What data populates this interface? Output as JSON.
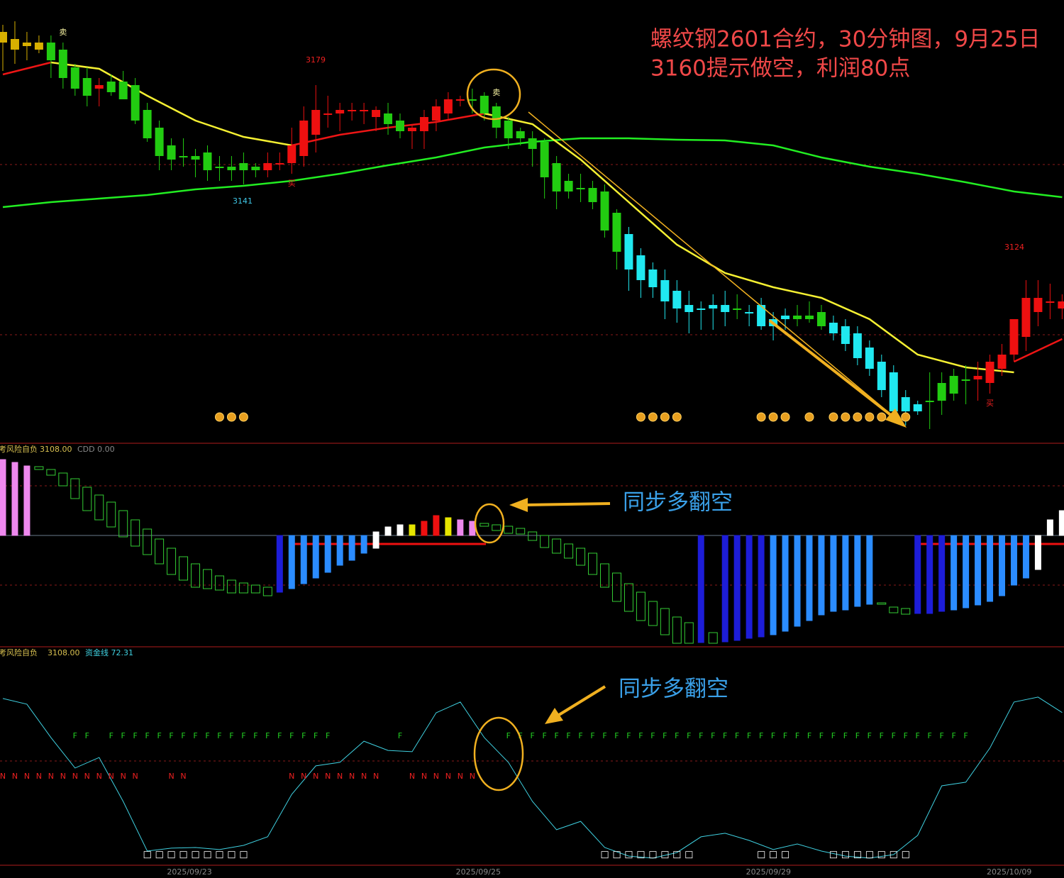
{
  "chart_data": [
    {
      "type": "candlestick",
      "title": [
        "螺纹钢2601合约，30分钟图，9月25日",
        "3160提示做空，利润80点"
      ],
      "ylim": [
        3078,
        3203
      ],
      "open": [
        3194,
        3192,
        3191,
        3191,
        3191,
        3189,
        3184,
        3181,
        3178,
        3180,
        3180,
        3179,
        3172,
        3167,
        3162,
        3159,
        3159,
        3160,
        3156,
        3156,
        3157,
        3156,
        3155,
        3157,
        3157,
        3159,
        3165,
        3171,
        3171,
        3172,
        3172,
        3170,
        3171,
        3169,
        3166,
        3166,
        3169,
        3171,
        3175,
        3175,
        3176,
        3173,
        3169,
        3166,
        3164,
        3163,
        3157,
        3152,
        3150,
        3150,
        3149,
        3143,
        3137,
        3131,
        3127,
        3124,
        3121,
        3117,
        3116,
        3117,
        3117,
        3116,
        3115,
        3117,
        3113,
        3114,
        3114,
        3114,
        3115,
        3112,
        3111,
        3109,
        3105,
        3101,
        3098,
        3091,
        3089,
        3090,
        3095,
        3097,
        3096,
        3096,
        3095,
        3099,
        3103,
        3108,
        3115,
        3118,
        3118
      ],
      "high": [
        3196,
        3197,
        3194,
        3193,
        3193,
        3191,
        3185,
        3184,
        3181,
        3182,
        3183,
        3181,
        3174,
        3169,
        3164,
        3164,
        3161,
        3162,
        3159,
        3159,
        3160,
        3157,
        3160,
        3160,
        3167,
        3173,
        3179,
        3176,
        3174,
        3174,
        3174,
        3173,
        3174,
        3171,
        3168,
        3172,
        3175,
        3177,
        3176,
        3178,
        3177,
        3174,
        3170,
        3167,
        3166,
        3164,
        3159,
        3154,
        3154,
        3152,
        3151,
        3144,
        3139,
        3133,
        3129,
        3127,
        3124,
        3121,
        3118,
        3120,
        3121,
        3120,
        3117,
        3119,
        3115,
        3116,
        3117,
        3118,
        3117,
        3114,
        3113,
        3111,
        3107,
        3103,
        3100,
        3093,
        3090,
        3098,
        3098,
        3099,
        3100,
        3101,
        3103,
        3106,
        3113,
        3124,
        3124,
        3123,
        3120
      ],
      "low": [
        3183,
        3185,
        3186,
        3188,
        3181,
        3178,
        3176,
        3173,
        3173,
        3176,
        3175,
        3168,
        3163,
        3155,
        3155,
        3156,
        3153,
        3152,
        3152,
        3152,
        3151,
        3153,
        3153,
        3155,
        3154,
        3156,
        3160,
        3167,
        3166,
        3169,
        3168,
        3166,
        3165,
        3164,
        3161,
        3161,
        3166,
        3169,
        3173,
        3171,
        3169,
        3164,
        3161,
        3162,
        3156,
        3147,
        3144,
        3147,
        3146,
        3144,
        3136,
        3127,
        3121,
        3119,
        3119,
        3113,
        3112,
        3109,
        3110,
        3110,
        3111,
        3113,
        3111,
        3110,
        3107,
        3110,
        3111,
        3112,
        3110,
        3107,
        3104,
        3100,
        3097,
        3091,
        3085,
        3083,
        3086,
        3082,
        3086,
        3090,
        3089,
        3090,
        3092,
        3097,
        3101,
        3104,
        3111,
        3113,
        3113
      ],
      "close": [
        3191,
        3189,
        3190,
        3189,
        3186,
        3181,
        3178,
        3176,
        3179,
        3177,
        3175,
        3169,
        3164,
        3159,
        3158,
        3159,
        3158,
        3155,
        3156,
        3155,
        3155,
        3155,
        3157,
        3157,
        3162,
        3169,
        3172,
        3171,
        3172,
        3172,
        3172,
        3172,
        3168,
        3166,
        3167,
        3170,
        3173,
        3175,
        3175,
        3175,
        3171,
        3167,
        3164,
        3164,
        3161,
        3153,
        3149,
        3149,
        3150,
        3146,
        3138,
        3132,
        3127,
        3124,
        3122,
        3118,
        3116,
        3115,
        3116,
        3116,
        3115,
        3116,
        3115,
        3111,
        3111,
        3113,
        3113,
        3113,
        3111,
        3109,
        3106,
        3102,
        3099,
        3093,
        3087,
        3087,
        3087,
        3090,
        3090,
        3092,
        3096,
        3097,
        3101,
        3103,
        3113,
        3119,
        3119,
        3118,
        3116
      ],
      "colors": [
        "#d8b000",
        "#d8b000",
        "#d8b000",
        "#d8b000",
        "#22cc11",
        "#22cc11",
        "#22cc11",
        "#22cc11",
        "#ee1010",
        "#22cc11",
        "#22cc11",
        "#22cc11",
        "#22cc11",
        "#22cc11",
        "#22cc11",
        "#22cc11",
        "#22cc11",
        "#22cc11",
        "#22cc11",
        "#22cc11",
        "#22cc11",
        "#22cc11",
        "#ee1010",
        "#ee1010",
        "#ee1010",
        "#ee1010",
        "#ee1010",
        "#ee1010",
        "#ee1010",
        "#ee1010",
        "#ee1010",
        "#ee1010",
        "#22cc11",
        "#22cc11",
        "#ee1010",
        "#ee1010",
        "#ee1010",
        "#ee1010",
        "#ee1010",
        "#22cc11",
        "#22cc11",
        "#22cc11",
        "#22cc11",
        "#22cc11",
        "#22cc11",
        "#22cc11",
        "#22cc11",
        "#22cc11",
        "#22cc11",
        "#22cc11",
        "#22cc11",
        "#22cc11",
        "#20e8f0",
        "#20e8f0",
        "#20e8f0",
        "#20e8f0",
        "#20e8f0",
        "#20e8f0",
        "#20e8f0",
        "#20e8f0",
        "#20e8f0",
        "#22cc11",
        "#20e8f0",
        "#20e8f0",
        "#20e8f0",
        "#20e8f0",
        "#22cc11",
        "#22cc11",
        "#22cc11",
        "#20e8f0",
        "#20e8f0",
        "#20e8f0",
        "#20e8f0",
        "#20e8f0",
        "#20e8f0",
        "#20e8f0",
        "#20e8f0",
        "#22cc11",
        "#22cc11",
        "#22cc11",
        "#22cc11",
        "#ee1010",
        "#ee1010",
        "#ee1010",
        "#ee1010",
        "#ee1010",
        "#ee1010",
        "#ee1010",
        "#ee1010"
      ],
      "lines": [
        {
          "color": "#22ee22",
          "x": [
            0,
            4,
            8,
            12,
            16,
            20,
            24,
            28,
            32,
            36,
            40,
            44,
            48,
            52,
            56,
            60,
            64,
            68,
            72,
            76,
            80,
            84,
            88
          ],
          "values": [
            3144.6,
            3146,
            3147,
            3148,
            3149.6,
            3150.6,
            3152,
            3154,
            3156.4,
            3158.6,
            3161.4,
            3163,
            3164,
            3164,
            3163.6,
            3163.4,
            3162,
            3158.6,
            3156,
            3154,
            3151.6,
            3149,
            3147.4
          ]
        },
        {
          "color": "#f5f032",
          "x": [
            0,
            4,
            8,
            12,
            16,
            20,
            24,
            28,
            32,
            36,
            40,
            44,
            48,
            52,
            56,
            60,
            64,
            68,
            72,
            76,
            80,
            84,
            88
          ],
          "values": [
            null,
            3185.4,
            3183.6,
            3176,
            3169,
            3164.4,
            3162,
            null,
            null,
            null,
            3171,
            3168,
            3158,
            3146,
            3134,
            3126,
            3122,
            3119,
            3113,
            3103,
            3099.4,
            3098,
            null
          ]
        },
        {
          "color": "#ee1515",
          "x": [
            0,
            4,
            8,
            12,
            16,
            20,
            24,
            28,
            32,
            36,
            40,
            44,
            48,
            52,
            56,
            60,
            64,
            68,
            72,
            76,
            80,
            84,
            88
          ],
          "values": [
            3182,
            3185.4,
            null,
            null,
            null,
            null,
            3162,
            3165,
            3167,
            3168.6,
            3171,
            null,
            null,
            null,
            null,
            null,
            null,
            null,
            null,
            null,
            null,
            3101,
            3107.4
          ]
        }
      ],
      "markers": [
        {
          "label": "卖",
          "index": 5
        },
        {
          "label": "买",
          "index": 24
        },
        {
          "label": "卖",
          "index": 41
        },
        {
          "label": "买",
          "index": 82
        }
      ],
      "price_labels": [
        3179,
        3141,
        3124
      ],
      "coin_indices": [
        18,
        19,
        20,
        53,
        54,
        55,
        56,
        63,
        64,
        65,
        67,
        69,
        70,
        71,
        72,
        73,
        74,
        75
      ]
    },
    {
      "type": "floating-bar",
      "header": [
        "考风险自负",
        "3108.00",
        "CDD 0.00"
      ],
      "annotation": "同步多翻空",
      "ylim": [
        -157,
        129
      ],
      "low": [
        0,
        0,
        0,
        93,
        85,
        70,
        52,
        35,
        22,
        12,
        -2,
        -15,
        -27,
        -40,
        -55,
        -63,
        -73,
        -75,
        -77,
        -81,
        -81,
        -81,
        -85,
        -80,
        -75,
        -68,
        -60,
        -52,
        -42,
        -35,
        -25,
        -18,
        0,
        0,
        0,
        0,
        0,
        0,
        0,
        0,
        13,
        7,
        3,
        2,
        -7,
        -17,
        -25,
        -32,
        -42,
        -55,
        -73,
        -93,
        -107,
        -120,
        -127,
        -140,
        -152,
        -152,
        -151,
        -152,
        -150,
        -148,
        -145,
        -143,
        -140,
        -135,
        -128,
        -120,
        -112,
        -107,
        -105,
        -100,
        -97,
        -97,
        -109,
        -111,
        -110,
        -110,
        -107,
        -105,
        -102,
        -98,
        -93,
        -85,
        -70,
        -60,
        -48,
        0,
        0
      ],
      "high": [
        107,
        103,
        98,
        97,
        93,
        88,
        80,
        68,
        57,
        47,
        35,
        22,
        9,
        -5,
        -18,
        -30,
        -40,
        -48,
        -57,
        -63,
        -67,
        -70,
        -73,
        0,
        0,
        0,
        0,
        0,
        0,
        0,
        0,
        5,
        12,
        15,
        15,
        20,
        28,
        25,
        22,
        20,
        17,
        15,
        13,
        10,
        5,
        0,
        -5,
        -12,
        -18,
        -25,
        -40,
        -53,
        -68,
        -80,
        -93,
        -103,
        -115,
        -123,
        0,
        -137,
        0,
        0,
        0,
        0,
        0,
        0,
        0,
        0,
        0,
        0,
        0,
        0,
        0,
        -95,
        -101,
        -103,
        0,
        0,
        0,
        0,
        0,
        0,
        0,
        0,
        0,
        0,
        0,
        22,
        35
      ],
      "colors": [
        "#ee88ee",
        "#ee88ee",
        "#ee88ee",
        "#33cc33",
        "#33cc33",
        "#33cc33",
        "#33cc33",
        "#33cc33",
        "#33cc33",
        "#33cc33",
        "#33cc33",
        "#33cc33",
        "#33cc33",
        "#33cc33",
        "#33cc33",
        "#33cc33",
        "#33cc33",
        "#33cc33",
        "#33cc33",
        "#33cc33",
        "#33cc33",
        "#33cc33",
        "#33cc33",
        "#1d1dd8",
        "#2b8cff",
        "#2b8cff",
        "#2b8cff",
        "#2b8cff",
        "#2b8cff",
        "#2b8cff",
        "#2b8cff",
        "#ffffff",
        "#ffffff",
        "#ffffff",
        "#e6e600",
        "#ee1010",
        "#ee1010",
        "#e6e600",
        "#ee88ee",
        "#ee88ee",
        "#33cc33",
        "#33cc33",
        "#33cc33",
        "#33cc33",
        "#33cc33",
        "#33cc33",
        "#33cc33",
        "#33cc33",
        "#33cc33",
        "#33cc33",
        "#33cc33",
        "#33cc33",
        "#33cc33",
        "#33cc33",
        "#33cc33",
        "#33cc33",
        "#33cc33",
        "#33cc33",
        "#1d1dd8",
        "#33cc33",
        "#1d1dd8",
        "#1d1dd8",
        "#1d1dd8",
        "#1d1dd8",
        "#2b8cff",
        "#2b8cff",
        "#2b8cff",
        "#2b8cff",
        "#2b8cff",
        "#2b8cff",
        "#2b8cff",
        "#2b8cff",
        "#2b8cff",
        "#33cc33",
        "#33cc33",
        "#33cc33",
        "#1d1dd8",
        "#1d1dd8",
        "#1d1dd8",
        "#2b8cff",
        "#2b8cff",
        "#2b8cff",
        "#2b8cff",
        "#2b8cff",
        "#2b8cff",
        "#2b8cff",
        "#ffffff",
        "#ffffff",
        "#ffffff"
      ],
      "hollow": [
        3,
        4,
        5,
        6,
        7,
        8,
        9,
        10,
        11,
        12,
        13,
        14,
        15,
        16,
        17,
        18,
        19,
        20,
        21,
        22,
        40,
        41,
        42,
        43,
        44,
        45,
        46,
        47,
        48,
        49,
        50,
        51,
        52,
        53,
        54,
        55,
        56,
        57,
        59,
        73,
        74,
        75
      ]
    },
    {
      "type": "line",
      "header": [
        "考风险自负",
        "3108.00",
        "资金线 72.31"
      ],
      "annotation": "同步多翻空",
      "color": "#3fd0e0",
      "ylim": [
        0,
        102.7
      ],
      "x": [
        0,
        2,
        4,
        6,
        8,
        10,
        12,
        14,
        16,
        18,
        20,
        22,
        24,
        26,
        28,
        30,
        32,
        34,
        36,
        38,
        40,
        42,
        44,
        46,
        48,
        50,
        52,
        54,
        56,
        58,
        60,
        62,
        64,
        66,
        68,
        70,
        72,
        74,
        76,
        78,
        80,
        82,
        84,
        86,
        88
      ],
      "values": [
        79.0,
        76.3,
        60.3,
        45.8,
        50.8,
        29.8,
        6.1,
        7.5,
        7.8,
        6.8,
        8.8,
        12.9,
        33.2,
        46.8,
        48.5,
        58.6,
        54.2,
        53.6,
        72.2,
        77.3,
        60.3,
        48.5,
        29.8,
        16.3,
        20.3,
        7.8,
        3.7,
        2.7,
        5.4,
        12.9,
        14.6,
        11.2,
        6.8,
        9.5,
        6.1,
        3.7,
        2.7,
        4.4,
        13.6,
        37.3,
        39.0,
        55.3,
        77.3,
        79.7,
        72.31
      ],
      "flags": [
        {
          "label": "F",
          "color": "#22cc22",
          "indices": [
            6,
            7,
            9,
            10,
            11,
            12,
            13,
            14,
            15,
            16,
            17,
            18,
            19,
            20,
            21,
            22,
            23,
            24,
            25,
            26,
            27,
            33,
            42,
            43,
            44,
            45,
            46,
            47,
            48,
            49,
            50,
            51,
            52,
            53,
            54,
            55,
            56,
            57,
            58,
            59,
            60,
            61,
            62,
            63,
            64,
            65,
            66,
            67,
            68,
            69,
            70,
            71,
            72,
            73,
            74,
            75,
            76,
            77,
            78,
            79,
            80
          ]
        },
        {
          "label": "N",
          "color": "#ee2020",
          "indices": [
            0,
            1,
            2,
            3,
            4,
            5,
            6,
            7,
            8,
            9,
            10,
            11,
            14,
            15,
            24,
            25,
            26,
            27,
            28,
            29,
            30,
            31,
            34,
            35,
            36,
            37,
            38,
            39
          ]
        },
        {
          "label": "□",
          "color": "#ffffff",
          "indices": [
            12,
            13,
            14,
            15,
            16,
            17,
            18,
            19,
            20,
            50,
            51,
            52,
            53,
            54,
            55,
            56,
            57,
            63,
            64,
            65,
            69,
            70,
            71,
            72,
            73,
            74,
            75
          ]
        }
      ],
      "xticks": [
        {
          "value": 15.5,
          "label": "2025/09/23"
        },
        {
          "value": 39.5,
          "label": "2025/09/25"
        },
        {
          "value": 63.6,
          "label": "2025/09/29"
        },
        {
          "value": 83.6,
          "label": "2025/10/09"
        }
      ]
    }
  ]
}
